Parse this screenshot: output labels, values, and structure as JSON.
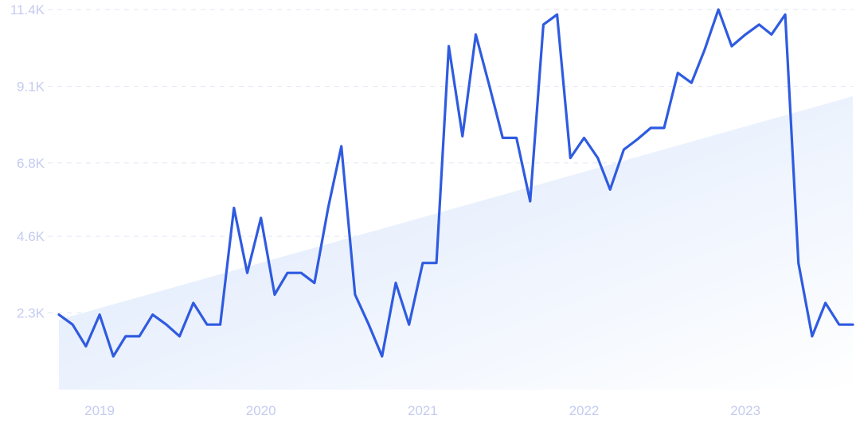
{
  "chart_data": {
    "type": "line",
    "title": "",
    "xlabel": "",
    "ylabel": "",
    "ylim": [
      0,
      11400
    ],
    "y_ticks": [
      {
        "value": 2300,
        "label": "2.3K"
      },
      {
        "value": 4600,
        "label": "4.6K"
      },
      {
        "value": 6800,
        "label": "6.8K"
      },
      {
        "value": 9100,
        "label": "9.1K"
      },
      {
        "value": 11400,
        "label": "11.4K"
      }
    ],
    "x_ticks": [
      {
        "value": "2019-01",
        "label": "2019"
      },
      {
        "value": "2020-01",
        "label": "2020"
      },
      {
        "value": "2021-01",
        "label": "2021"
      },
      {
        "value": "2022-01",
        "label": "2022"
      },
      {
        "value": "2023-01",
        "label": "2023"
      }
    ],
    "grid": true,
    "trend_area": {
      "start_value": 2100,
      "end_value": 8800
    },
    "colors": {
      "line": "#2f5be0",
      "area_light": "#dde8fb",
      "grid": "#e3e6f2",
      "tick_text": "#c5cbf0"
    },
    "series": [
      {
        "x": [
          "2018-10",
          "2018-11",
          "2018-12",
          "2019-01",
          "2019-02",
          "2019-03",
          "2019-04",
          "2019-05",
          "2019-06",
          "2019-07",
          "2019-08",
          "2019-09",
          "2019-10",
          "2019-11",
          "2019-12",
          "2020-01",
          "2020-02",
          "2020-03",
          "2020-04",
          "2020-05",
          "2020-06",
          "2020-07",
          "2020-08",
          "2020-09",
          "2020-10",
          "2020-11",
          "2020-12",
          "2021-01",
          "2021-02",
          "2021-03",
          "2021-04",
          "2021-05",
          "2021-06",
          "2021-07",
          "2021-08",
          "2021-09",
          "2021-10",
          "2021-11",
          "2021-12",
          "2022-01",
          "2022-02",
          "2022-03",
          "2022-04",
          "2022-05",
          "2022-06",
          "2022-07",
          "2022-08",
          "2022-09",
          "2022-10",
          "2022-11",
          "2022-12",
          "2023-01",
          "2023-02",
          "2023-03",
          "2023-04",
          "2023-05",
          "2023-06",
          "2023-07",
          "2023-08",
          "2023-09"
        ],
        "values": [
          2250,
          1950,
          1300,
          2250,
          1000,
          1600,
          1600,
          2250,
          1950,
          1600,
          2600,
          1950,
          1950,
          5450,
          3500,
          5150,
          2850,
          3500,
          3500,
          3200,
          5450,
          7300,
          2850,
          1950,
          1000,
          3200,
          1950,
          3800,
          3800,
          10300,
          7600,
          10650,
          9100,
          7550,
          7550,
          5650,
          10950,
          11250,
          6950,
          7550,
          6950,
          6000,
          7200,
          7500,
          7850,
          7850,
          9500,
          9200,
          10200,
          11400,
          10300,
          10650,
          10950,
          10650,
          11250,
          3800,
          1600,
          2600,
          1950,
          1950
        ]
      }
    ]
  }
}
